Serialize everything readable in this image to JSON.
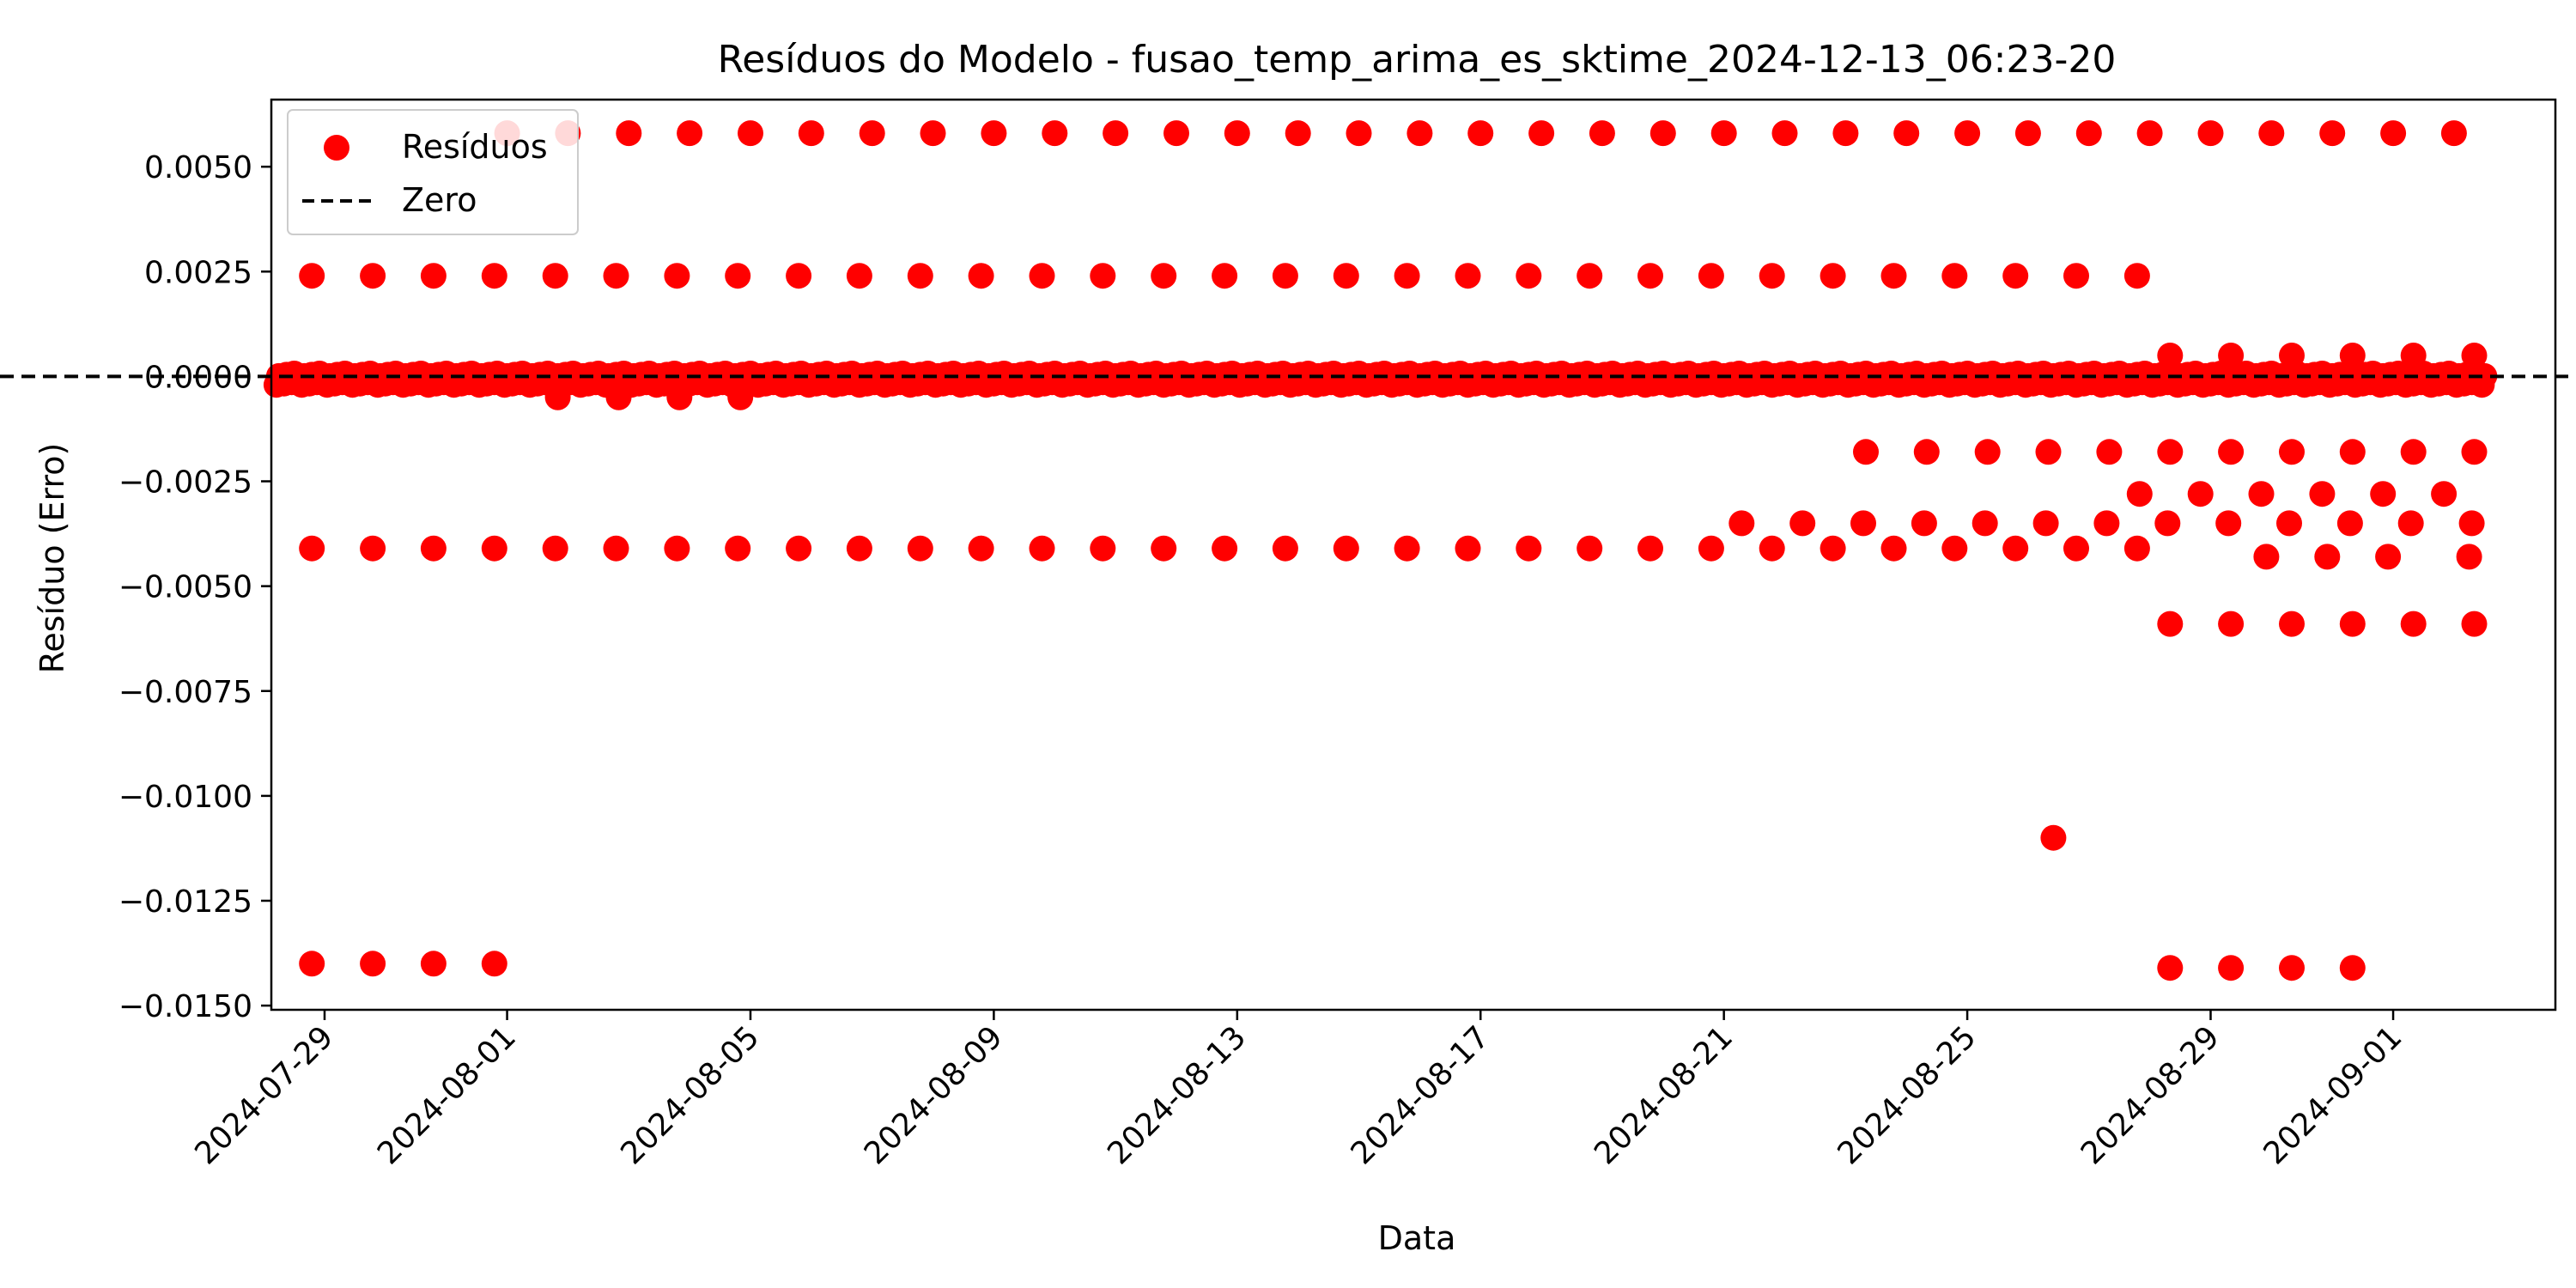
{
  "chart_data": {
    "type": "scatter",
    "title": "Resíduos do Modelo - fusao_temp_arima_es_sktime_2024-12-13_06:23-20",
    "xlabel": "Data",
    "ylabel": "Resíduo (Erro)",
    "xlim": [
      "2024-07-28",
      "2024-09-03"
    ],
    "ylim": [
      -0.015,
      0.0065
    ],
    "x_ticks": [
      "2024-07-29",
      "2024-08-01",
      "2024-08-05",
      "2024-08-09",
      "2024-08-13",
      "2024-08-17",
      "2024-08-21",
      "2024-08-25",
      "2024-08-29",
      "2024-09-01"
    ],
    "y_ticks": [
      0.005,
      0.0025,
      0.0,
      -0.0025,
      -0.005,
      -0.0075,
      -0.01,
      -0.0125,
      -0.015
    ],
    "y_tick_labels": [
      "0.0050",
      "0.0025",
      "0.0000",
      "−0.0025",
      "−0.0050",
      "−0.0075",
      "−0.0100",
      "−0.0125",
      "−0.0150"
    ],
    "legend": {
      "placement": "top-left",
      "entries": [
        "Resíduos",
        "Zero"
      ]
    },
    "grid": false,
    "reference_line": {
      "name": "Zero",
      "y": 0.0,
      "style": "dashed",
      "color": "#000000"
    },
    "series": [
      {
        "name": "Resíduos",
        "color": "#ff0000",
        "points": [
          {
            "x": "2024-07-28 19:00",
            "y": -0.014
          },
          {
            "x": "2024-07-29 19:00",
            "y": -0.014
          },
          {
            "x": "2024-07-30 19:00",
            "y": -0.014
          },
          {
            "x": "2024-07-31 19:00",
            "y": -0.014
          },
          {
            "x": "2024-08-28 08:00",
            "y": -0.0141
          },
          {
            "x": "2024-08-29 08:00",
            "y": -0.0141
          },
          {
            "x": "2024-08-30 08:00",
            "y": -0.0141
          },
          {
            "x": "2024-08-31 08:00",
            "y": -0.0141
          },
          {
            "x": "2024-08-26 10:00",
            "y": -0.011
          },
          {
            "x": "2024-07-28 19:00",
            "y": -0.0041
          },
          {
            "x": "2024-07-29 19:00",
            "y": -0.0041
          },
          {
            "x": "2024-07-30 19:00",
            "y": -0.0041
          },
          {
            "x": "2024-07-31 19:00",
            "y": -0.0041
          },
          {
            "x": "2024-08-01 19:00",
            "y": -0.0041
          },
          {
            "x": "2024-08-02 19:00",
            "y": -0.0041
          },
          {
            "x": "2024-08-03 19:00",
            "y": -0.0041
          },
          {
            "x": "2024-08-04 19:00",
            "y": -0.0041
          },
          {
            "x": "2024-08-05 19:00",
            "y": -0.0041
          },
          {
            "x": "2024-08-06 19:00",
            "y": -0.0041
          },
          {
            "x": "2024-08-07 19:00",
            "y": -0.0041
          },
          {
            "x": "2024-08-08 19:00",
            "y": -0.0041
          },
          {
            "x": "2024-08-09 19:00",
            "y": -0.0041
          },
          {
            "x": "2024-08-10 19:00",
            "y": -0.0041
          },
          {
            "x": "2024-08-11 19:00",
            "y": -0.0041
          },
          {
            "x": "2024-08-12 19:00",
            "y": -0.0041
          },
          {
            "x": "2024-08-13 19:00",
            "y": -0.0041
          },
          {
            "x": "2024-08-14 19:00",
            "y": -0.0041
          },
          {
            "x": "2024-08-15 19:00",
            "y": -0.0041
          },
          {
            "x": "2024-08-16 19:00",
            "y": -0.0041
          },
          {
            "x": "2024-08-17 19:00",
            "y": -0.0041
          },
          {
            "x": "2024-08-18 19:00",
            "y": -0.0041
          },
          {
            "x": "2024-08-19 19:00",
            "y": -0.0041
          },
          {
            "x": "2024-08-20 19:00",
            "y": -0.0041
          },
          {
            "x": "2024-08-21 19:00",
            "y": -0.0041
          },
          {
            "x": "2024-08-22 19:00",
            "y": -0.0041
          },
          {
            "x": "2024-08-23 19:00",
            "y": -0.0041
          },
          {
            "x": "2024-08-24 19:00",
            "y": -0.0041
          },
          {
            "x": "2024-08-25 19:00",
            "y": -0.0041
          },
          {
            "x": "2024-08-26 19:00",
            "y": -0.0041
          },
          {
            "x": "2024-08-27 19:00",
            "y": -0.0041
          },
          {
            "x": "2024-08-21 07:00",
            "y": -0.0035
          },
          {
            "x": "2024-08-22 07:00",
            "y": -0.0035
          },
          {
            "x": "2024-08-23 07:00",
            "y": -0.0035
          },
          {
            "x": "2024-08-24 07:00",
            "y": -0.0035
          },
          {
            "x": "2024-08-25 07:00",
            "y": -0.0035
          },
          {
            "x": "2024-08-26 07:00",
            "y": -0.0035
          },
          {
            "x": "2024-08-27 07:00",
            "y": -0.0035
          },
          {
            "x": "2024-08-28 07:00",
            "y": -0.0035
          },
          {
            "x": "2024-08-29 07:00",
            "y": -0.0035
          },
          {
            "x": "2024-08-30 07:00",
            "y": -0.0035
          },
          {
            "x": "2024-08-31 07:00",
            "y": -0.0035
          },
          {
            "x": "2024-09-01 07:00",
            "y": -0.0035
          },
          {
            "x": "2024-09-02 07:00",
            "y": -0.0035
          },
          {
            "x": "2024-08-23 08:00",
            "y": -0.0018
          },
          {
            "x": "2024-08-24 08:00",
            "y": -0.0018
          },
          {
            "x": "2024-08-25 08:00",
            "y": -0.0018
          },
          {
            "x": "2024-08-26 08:00",
            "y": -0.0018
          },
          {
            "x": "2024-08-27 08:00",
            "y": -0.0018
          },
          {
            "x": "2024-08-28 08:00",
            "y": -0.0018
          },
          {
            "x": "2024-08-29 08:00",
            "y": -0.0018
          },
          {
            "x": "2024-08-30 08:00",
            "y": -0.0018
          },
          {
            "x": "2024-08-31 08:00",
            "y": -0.0018
          },
          {
            "x": "2024-09-01 08:00",
            "y": -0.0018
          },
          {
            "x": "2024-09-02 08:00",
            "y": -0.0018
          },
          {
            "x": "2024-08-27 20:00",
            "y": -0.0028
          },
          {
            "x": "2024-08-28 20:00",
            "y": -0.0028
          },
          {
            "x": "2024-08-29 20:00",
            "y": -0.0028
          },
          {
            "x": "2024-08-30 20:00",
            "y": -0.0028
          },
          {
            "x": "2024-08-31 20:00",
            "y": -0.0028
          },
          {
            "x": "2024-09-01 20:00",
            "y": -0.0028
          },
          {
            "x": "2024-08-29 22:00",
            "y": -0.0043
          },
          {
            "x": "2024-08-30 22:00",
            "y": -0.0043
          },
          {
            "x": "2024-08-31 22:00",
            "y": -0.0043
          },
          {
            "x": "2024-09-02 06:00",
            "y": -0.0043
          },
          {
            "x": "2024-08-28 08:00",
            "y": -0.0059
          },
          {
            "x": "2024-08-29 08:00",
            "y": -0.0059
          },
          {
            "x": "2024-08-30 08:00",
            "y": -0.0059
          },
          {
            "x": "2024-08-31 08:00",
            "y": -0.0059
          },
          {
            "x": "2024-09-01 08:00",
            "y": -0.0059
          },
          {
            "x": "2024-09-02 08:00",
            "y": -0.0059
          },
          {
            "x": "2024-08-01 20:00",
            "y": -0.0005
          },
          {
            "x": "2024-08-02 20:00",
            "y": -0.0005
          },
          {
            "x": "2024-08-03 20:00",
            "y": -0.0005
          },
          {
            "x": "2024-08-04 20:00",
            "y": -0.0005
          },
          {
            "x": "2024-07-28 19:00",
            "y": 0.0024
          },
          {
            "x": "2024-07-29 19:00",
            "y": 0.0024
          },
          {
            "x": "2024-07-30 19:00",
            "y": 0.0024
          },
          {
            "x": "2024-07-31 19:00",
            "y": 0.0024
          },
          {
            "x": "2024-08-01 19:00",
            "y": 0.0024
          },
          {
            "x": "2024-08-02 19:00",
            "y": 0.0024
          },
          {
            "x": "2024-08-03 19:00",
            "y": 0.0024
          },
          {
            "x": "2024-08-04 19:00",
            "y": 0.0024
          },
          {
            "x": "2024-08-05 19:00",
            "y": 0.0024
          },
          {
            "x": "2024-08-06 19:00",
            "y": 0.0024
          },
          {
            "x": "2024-08-07 19:00",
            "y": 0.0024
          },
          {
            "x": "2024-08-08 19:00",
            "y": 0.0024
          },
          {
            "x": "2024-08-09 19:00",
            "y": 0.0024
          },
          {
            "x": "2024-08-10 19:00",
            "y": 0.0024
          },
          {
            "x": "2024-08-11 19:00",
            "y": 0.0024
          },
          {
            "x": "2024-08-12 19:00",
            "y": 0.0024
          },
          {
            "x": "2024-08-13 19:00",
            "y": 0.0024
          },
          {
            "x": "2024-08-14 19:00",
            "y": 0.0024
          },
          {
            "x": "2024-08-15 19:00",
            "y": 0.0024
          },
          {
            "x": "2024-08-16 19:00",
            "y": 0.0024
          },
          {
            "x": "2024-08-17 19:00",
            "y": 0.0024
          },
          {
            "x": "2024-08-18 19:00",
            "y": 0.0024
          },
          {
            "x": "2024-08-19 19:00",
            "y": 0.0024
          },
          {
            "x": "2024-08-20 19:00",
            "y": 0.0024
          },
          {
            "x": "2024-08-21 19:00",
            "y": 0.0024
          },
          {
            "x": "2024-08-22 19:00",
            "y": 0.0024
          },
          {
            "x": "2024-08-23 19:00",
            "y": 0.0024
          },
          {
            "x": "2024-08-24 19:00",
            "y": 0.0024
          },
          {
            "x": "2024-08-25 19:00",
            "y": 0.0024
          },
          {
            "x": "2024-08-26 19:00",
            "y": 0.0024
          },
          {
            "x": "2024-08-27 19:00",
            "y": 0.0024
          },
          {
            "x": "2024-08-01 00:00",
            "y": 0.0058
          },
          {
            "x": "2024-08-02 00:00",
            "y": 0.0058
          },
          {
            "x": "2024-08-03 00:00",
            "y": 0.0058
          },
          {
            "x": "2024-08-04 00:00",
            "y": 0.0058
          },
          {
            "x": "2024-08-05 00:00",
            "y": 0.0058
          },
          {
            "x": "2024-08-06 00:00",
            "y": 0.0058
          },
          {
            "x": "2024-08-07 00:00",
            "y": 0.0058
          },
          {
            "x": "2024-08-08 00:00",
            "y": 0.0058
          },
          {
            "x": "2024-08-09 00:00",
            "y": 0.0058
          },
          {
            "x": "2024-08-10 00:00",
            "y": 0.0058
          },
          {
            "x": "2024-08-11 00:00",
            "y": 0.0058
          },
          {
            "x": "2024-08-12 00:00",
            "y": 0.0058
          },
          {
            "x": "2024-08-13 00:00",
            "y": 0.0058
          },
          {
            "x": "2024-08-14 00:00",
            "y": 0.0058
          },
          {
            "x": "2024-08-15 00:00",
            "y": 0.0058
          },
          {
            "x": "2024-08-16 00:00",
            "y": 0.0058
          },
          {
            "x": "2024-08-17 00:00",
            "y": 0.0058
          },
          {
            "x": "2024-08-18 00:00",
            "y": 0.0058
          },
          {
            "x": "2024-08-19 00:00",
            "y": 0.0058
          },
          {
            "x": "2024-08-20 00:00",
            "y": 0.0058
          },
          {
            "x": "2024-08-21 00:00",
            "y": 0.0058
          },
          {
            "x": "2024-08-22 00:00",
            "y": 0.0058
          },
          {
            "x": "2024-08-23 00:00",
            "y": 0.0058
          },
          {
            "x": "2024-08-24 00:00",
            "y": 0.0058
          },
          {
            "x": "2024-08-25 00:00",
            "y": 0.0058
          },
          {
            "x": "2024-08-26 00:00",
            "y": 0.0058
          },
          {
            "x": "2024-08-27 00:00",
            "y": 0.0058
          },
          {
            "x": "2024-08-28 00:00",
            "y": 0.0058
          },
          {
            "x": "2024-08-29 00:00",
            "y": 0.0058
          },
          {
            "x": "2024-08-30 00:00",
            "y": 0.0058
          },
          {
            "x": "2024-08-31 00:00",
            "y": 0.0058
          },
          {
            "x": "2024-09-01 00:00",
            "y": 0.0058
          },
          {
            "x": "2024-09-02 00:00",
            "y": 0.0058
          },
          {
            "x": "2024-08-28 08:00",
            "y": 0.0005
          },
          {
            "x": "2024-08-29 08:00",
            "y": 0.0005
          },
          {
            "x": "2024-08-30 08:00",
            "y": 0.0005
          },
          {
            "x": "2024-08-31 08:00",
            "y": 0.0005
          },
          {
            "x": "2024-09-01 08:00",
            "y": 0.0005
          },
          {
            "x": "2024-09-02 08:00",
            "y": 0.0005
          }
        ],
        "dense_band": {
          "note": "near-zero cluster of residuals, roughly hourly",
          "x_start": "2024-07-28 05:00",
          "x_end": "2024-09-02 12:00",
          "y_min": -0.0002,
          "y_max": 0.0001
        }
      }
    ]
  }
}
